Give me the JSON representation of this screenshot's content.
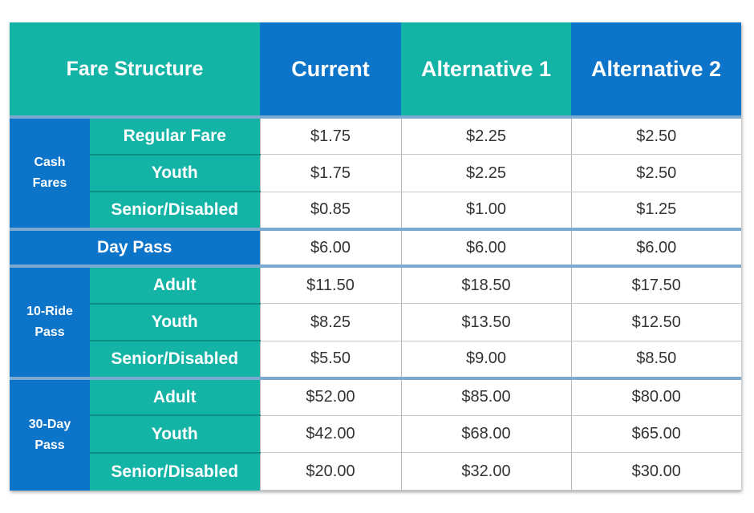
{
  "chart_data": {
    "type": "table",
    "header": {
      "corner": "Fare Structure",
      "columns": [
        "Current",
        "Alternative 1",
        "Alternative 2"
      ]
    },
    "groups": [
      {
        "label_line1": "Cash",
        "label_line2": "Fares",
        "rows": [
          {
            "label": "Regular Fare",
            "values": [
              "$1.75",
              "$2.25",
              "$2.50"
            ]
          },
          {
            "label": "Youth",
            "values": [
              "$1.75",
              "$2.25",
              "$2.50"
            ]
          },
          {
            "label": "Senior/Disabled",
            "values": [
              "$0.85",
              "$1.00",
              "$1.25"
            ]
          }
        ]
      },
      {
        "label": "Day Pass",
        "values": [
          "$6.00",
          "$6.00",
          "$6.00"
        ]
      },
      {
        "label_line1": "10-Ride",
        "label_line2": "Pass",
        "rows": [
          {
            "label": "Adult",
            "values": [
              "$11.50",
              "$18.50",
              "$17.50"
            ]
          },
          {
            "label": "Youth",
            "values": [
              "$8.25",
              "$13.50",
              "$12.50"
            ]
          },
          {
            "label": "Senior/Disabled",
            "values": [
              "$5.50",
              "$9.00",
              "$8.50"
            ]
          }
        ]
      },
      {
        "label_line1": "30-Day",
        "label_line2": "Pass",
        "rows": [
          {
            "label": "Adult",
            "values": [
              "$52.00",
              "$85.00",
              "$80.00"
            ]
          },
          {
            "label": "Youth",
            "values": [
              "$42.00",
              "$68.00",
              "$65.00"
            ]
          },
          {
            "label": "Senior/Disabled",
            "values": [
              "$20.00",
              "$32.00",
              "$30.00"
            ]
          }
        ]
      }
    ]
  },
  "colors": {
    "teal": "#13b3a6",
    "blue": "#0c74c9",
    "value_text": "#333333"
  }
}
